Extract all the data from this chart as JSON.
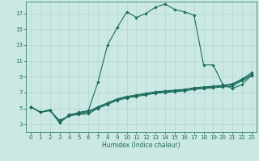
{
  "xlabel": "Humidex (Indice chaleur)",
  "xlim": [
    -0.5,
    23.5
  ],
  "ylim": [
    2,
    18.5
  ],
  "yticks": [
    3,
    5,
    7,
    9,
    11,
    13,
    15,
    17
  ],
  "xticks": [
    0,
    1,
    2,
    3,
    4,
    5,
    6,
    7,
    8,
    9,
    10,
    11,
    12,
    13,
    14,
    15,
    16,
    17,
    18,
    19,
    20,
    21,
    22,
    23
  ],
  "bg_color": "#cce8e4",
  "grid_color": "#b0d8d4",
  "line_color": "#1a6b5a",
  "lines": [
    [
      5.2,
      4.5,
      4.7,
      3.5,
      4.0,
      4.5,
      4.7,
      8.3,
      13.0,
      15.2,
      17.2,
      16.5,
      17.0,
      17.8,
      18.2,
      17.5,
      17.2,
      16.8,
      10.5,
      10.5,
      8.0,
      7.5,
      8.0,
      9.2
    ],
    [
      5.2,
      4.5,
      4.8,
      3.2,
      4.1,
      4.2,
      4.3,
      5.0,
      5.5,
      6.0,
      6.3,
      6.5,
      6.7,
      6.9,
      7.0,
      7.1,
      7.2,
      7.4,
      7.5,
      7.6,
      7.7,
      7.8,
      8.5,
      9.1
    ],
    [
      5.2,
      4.5,
      4.8,
      3.2,
      4.1,
      4.3,
      4.5,
      5.1,
      5.6,
      6.1,
      6.4,
      6.6,
      6.8,
      7.0,
      7.1,
      7.2,
      7.3,
      7.5,
      7.6,
      7.7,
      7.8,
      8.0,
      8.6,
      9.3
    ],
    [
      5.2,
      4.5,
      4.8,
      3.2,
      4.2,
      4.4,
      4.6,
      5.2,
      5.7,
      6.2,
      6.5,
      6.7,
      6.9,
      7.1,
      7.2,
      7.3,
      7.4,
      7.6,
      7.7,
      7.8,
      7.9,
      8.1,
      8.7,
      9.5
    ]
  ],
  "marker": "D",
  "markersize": 1.8,
  "linewidth": 0.8,
  "axis_fontsize": 5.5,
  "tick_fontsize": 5.0
}
